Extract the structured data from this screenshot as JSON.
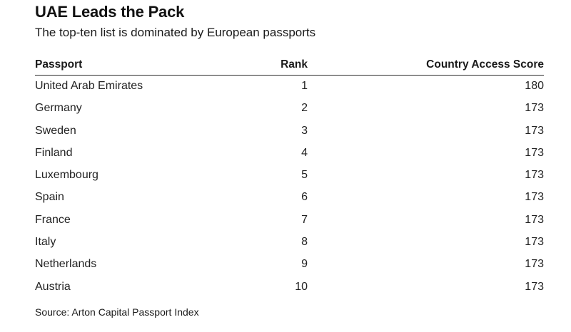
{
  "title": "UAE Leads the Pack",
  "subtitle": "The top-ten list is dominated by European passports",
  "source": "Source: Arton Capital Passport Index",
  "chart_data": {
    "type": "table",
    "columns": [
      "Passport",
      "Rank",
      "Country Access Score"
    ],
    "rows": [
      {
        "passport": "United Arab Emirates",
        "rank": 1,
        "score": 180
      },
      {
        "passport": "Germany",
        "rank": 2,
        "score": 173
      },
      {
        "passport": "Sweden",
        "rank": 3,
        "score": 173
      },
      {
        "passport": "Finland",
        "rank": 4,
        "score": 173
      },
      {
        "passport": "Luxembourg",
        "rank": 5,
        "score": 173
      },
      {
        "passport": "Spain",
        "rank": 6,
        "score": 173
      },
      {
        "passport": "France",
        "rank": 7,
        "score": 173
      },
      {
        "passport": "Italy",
        "rank": 8,
        "score": 173
      },
      {
        "passport": "Netherlands",
        "rank": 9,
        "score": 173
      },
      {
        "passport": "Austria",
        "rank": 10,
        "score": 173
      }
    ]
  }
}
